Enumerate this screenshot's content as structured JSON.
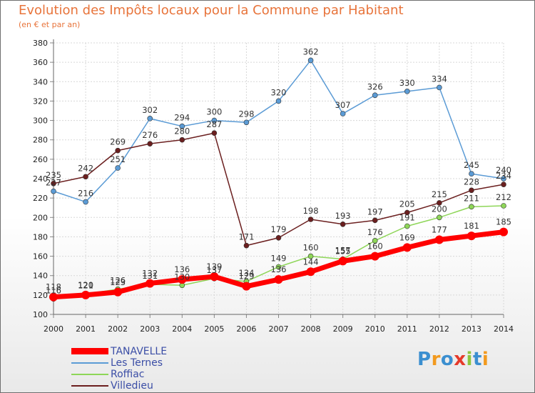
{
  "header": {
    "title": "Evolution des Impôts locaux pour la Commune par Habitant",
    "subtitle": "(en € et par an)"
  },
  "logo": {
    "text": "Proxiti",
    "letters": [
      {
        "ch": "P",
        "color": "#3b8fd0"
      },
      {
        "ch": "r",
        "color": "#f29a1f"
      },
      {
        "ch": "o",
        "color": "#3b8fd0"
      },
      {
        "ch": "x",
        "color": "#e53a2a"
      },
      {
        "ch": "i",
        "color": "#8cc63e"
      },
      {
        "ch": "t",
        "color": "#3b8fd0"
      },
      {
        "ch": "i",
        "color": "#f29a1f"
      }
    ]
  },
  "chart_data": {
    "type": "line",
    "title": "Evolution des Impôts locaux pour la Commune par Habitant",
    "subtitle": "(en € et par an)",
    "x": [
      "2000",
      "2001",
      "2002",
      "2003",
      "2004",
      "2005",
      "2006",
      "2007",
      "2008",
      "2009",
      "2010",
      "2011",
      "2012",
      "2013",
      "2014"
    ],
    "ylim": [
      100,
      380
    ],
    "ytick_step": 20,
    "grid": true,
    "legend": "bottom-left",
    "series": [
      {
        "name": "TANAVELLE",
        "color": "#ff0000",
        "values": [
          118,
          120,
          123,
          132,
          136,
          139,
          129,
          136,
          144,
          155,
          160,
          169,
          177,
          181,
          185
        ]
      },
      {
        "name": "Les Ternes",
        "color": "#5b9bd5",
        "values": [
          227,
          216,
          251,
          302,
          294,
          300,
          298,
          320,
          362,
          307,
          326,
          330,
          334,
          245,
          240
        ]
      },
      {
        "name": "Roffiac",
        "color": "#8ed658",
        "values": [
          116,
          121,
          126,
          131,
          130,
          137,
          134,
          149,
          160,
          157,
          176,
          191,
          200,
          211,
          212
        ]
      },
      {
        "name": "Villedieu",
        "color": "#6b1f1f",
        "values": [
          235,
          242,
          269,
          276,
          280,
          287,
          171,
          179,
          198,
          193,
          197,
          205,
          215,
          228,
          234
        ]
      }
    ]
  }
}
